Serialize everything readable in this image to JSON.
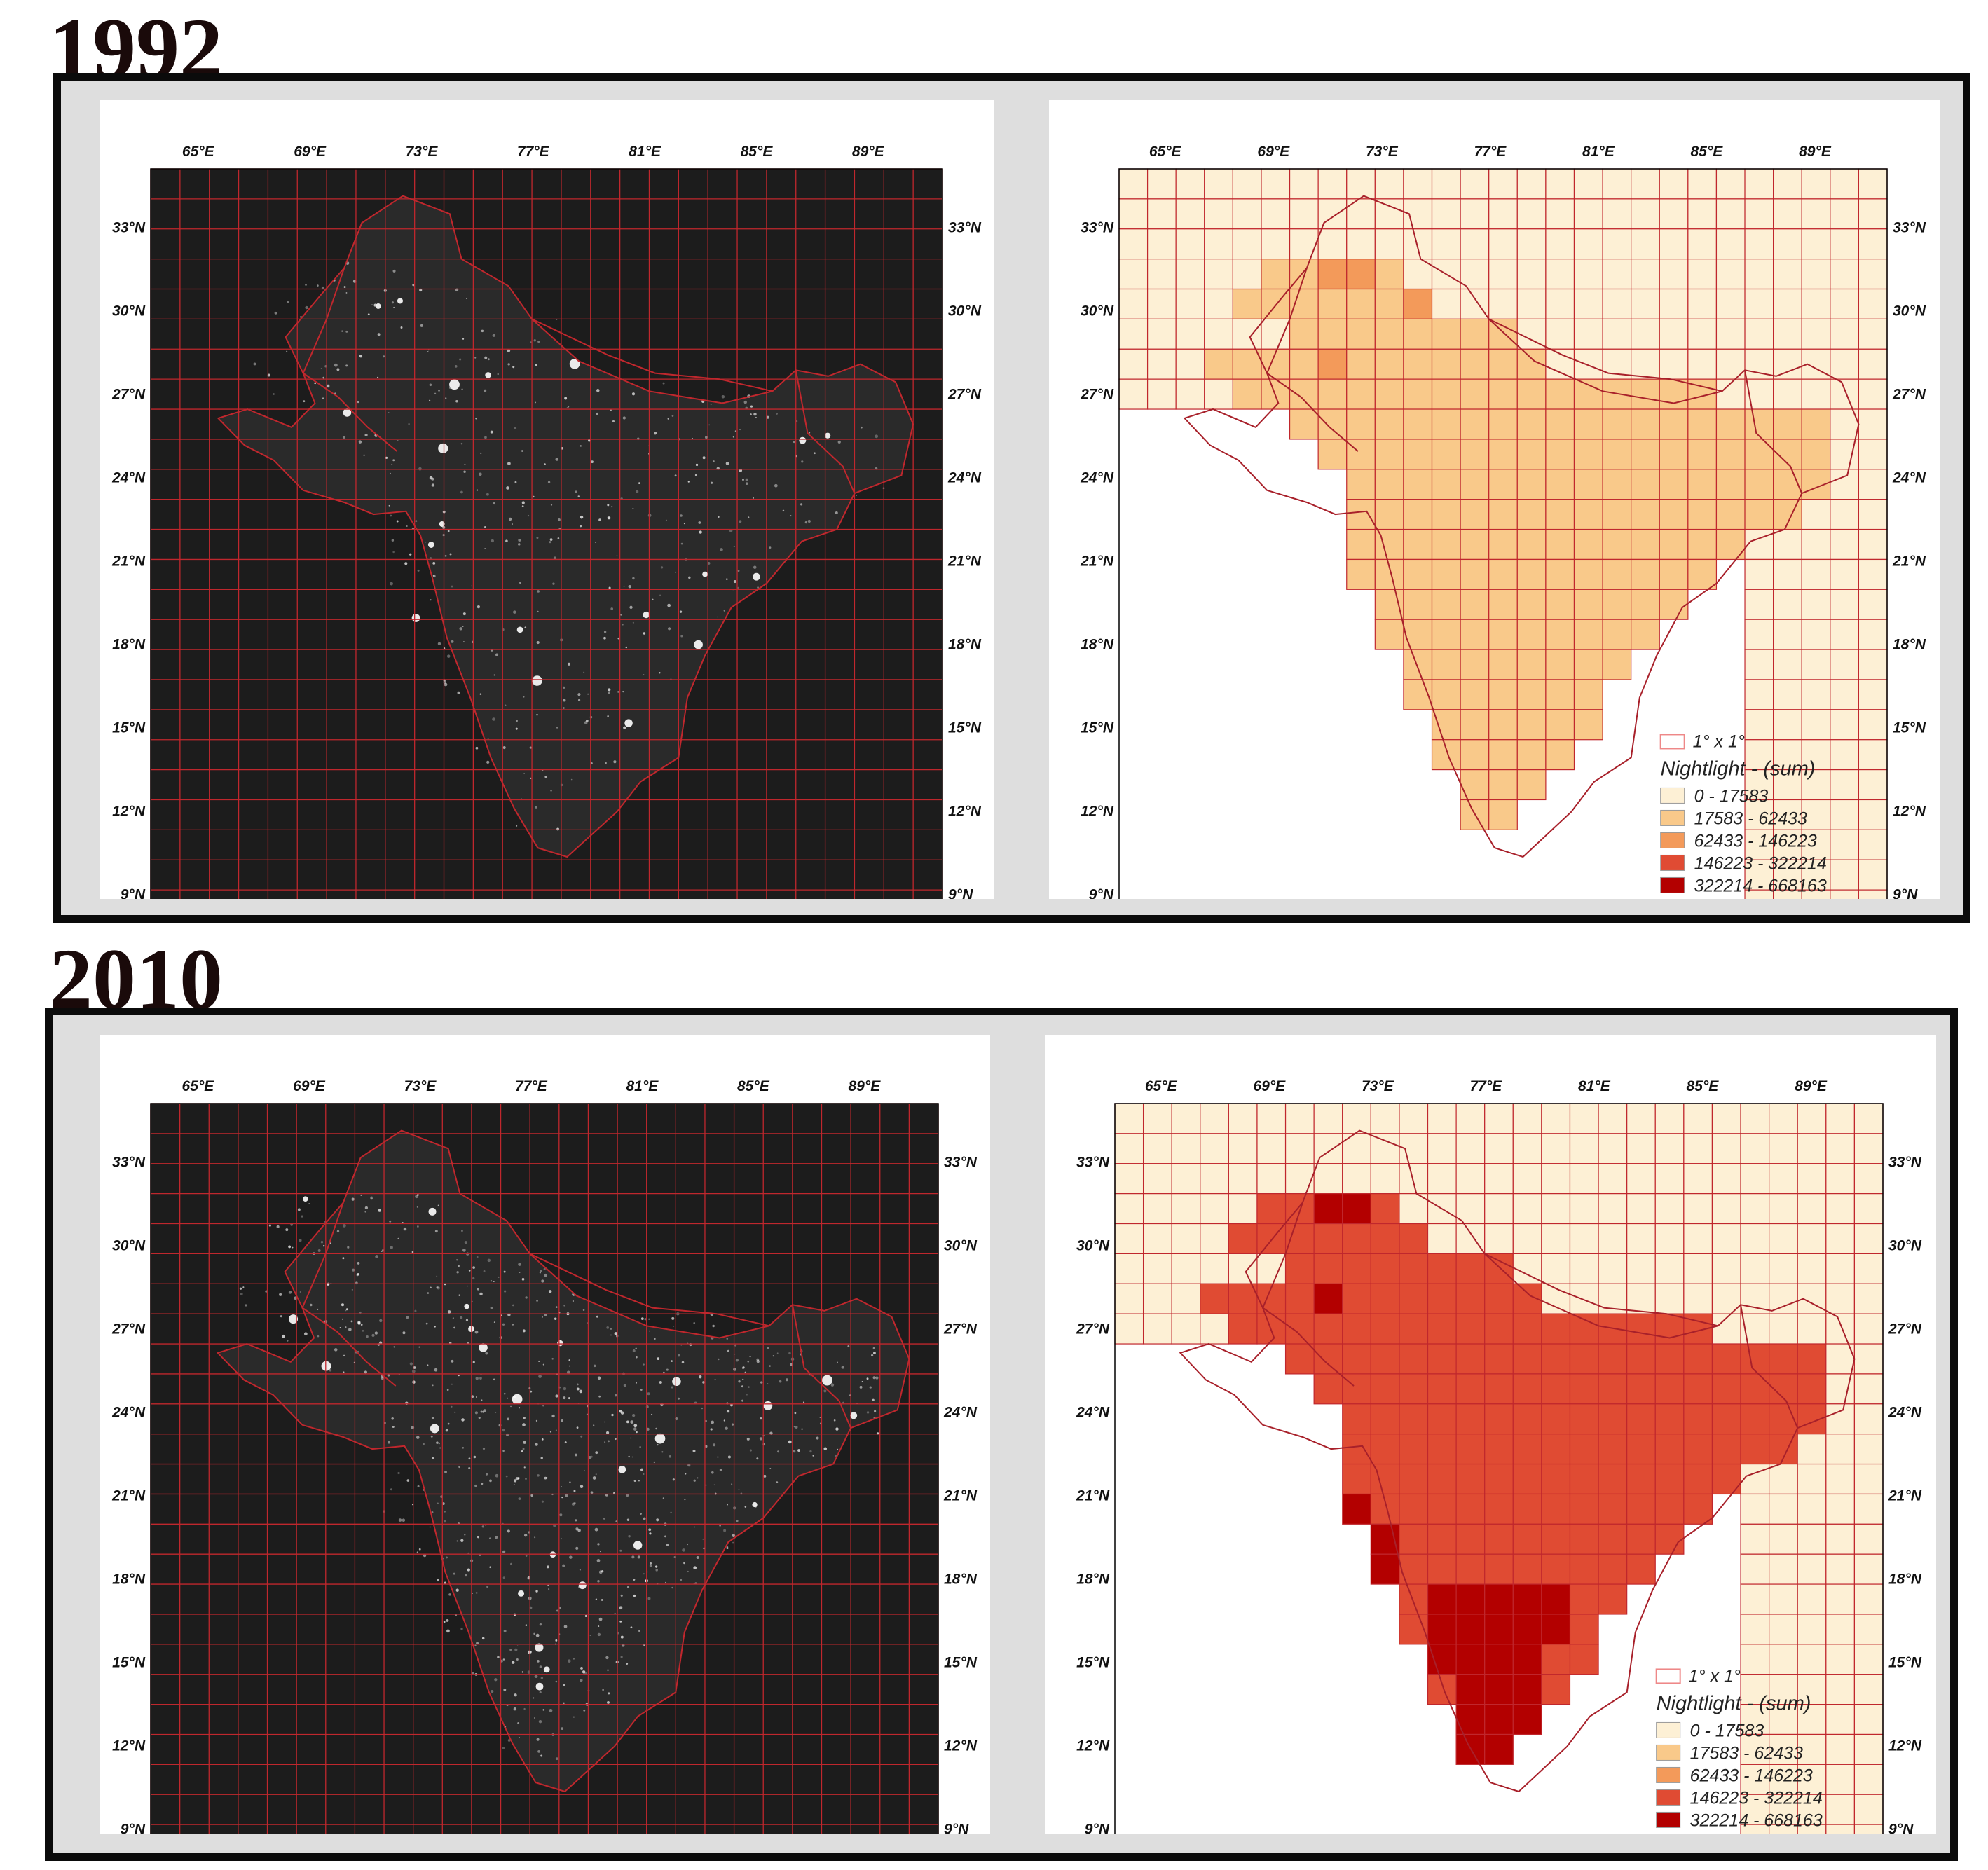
{
  "sections": [
    {
      "year": "1992",
      "values": [
        "000000000000000000000000000",
        "000000000000000000000000000",
        "000000000000000000000000000",
        "000001122100000000000000000",
        "000011111120000000000000000",
        "000000111111110000000000000",
        "000111121111111000000000000",
        "000011111111111111111000000",
        "000000111111111111111111100",
        "000000011111111111111111100",
        "000000001111111111111111100",
        "000000001111111111111111000",
        "000000001111111111111100000",
        "000000001111111111111000000",
        "000000000111111111110000000",
        "000000000111111111100000000",
        "000000000011111111000000000",
        "000000000011111110000000000",
        "000000000001111110000000000",
        "000000000001111100000000000",
        "000000000000111000000000000",
        "000000000000110000000000000",
        "000000000000000000000000000",
        "000000000000000000000000000",
        "000000000000000000000000000"
      ]
    },
    {
      "year": "2010",
      "values": [
        "000000000000000000000000000",
        "000000000000000000000000000",
        "000000000000000000000000000",
        "000003344300000000000000000",
        "000033333330000000000000000",
        "000000333333330000000000000",
        "000333343333333000000000000",
        "000033333333333333333000000",
        "000000333333333333333333300",
        "000000033333333333333333300",
        "000000003333333333333333300",
        "000000003333333333333333000",
        "000000003333333333333300000",
        "000000004333333333333000000",
        "000000000433333333330000000",
        "000000000433333333300000000",
        "000000000034444433000000000",
        "000000000034444430000000000",
        "000000000004444330000000000",
        "000000000003444300000000000",
        "000000000000444000000000000",
        "000000000000440000000000000",
        "000000000000000000000000000",
        "000000000000000000000000000",
        "000000000000000000000000000"
      ]
    }
  ],
  "axes": {
    "lon_labels": [
      "65°E",
      "69°E",
      "73°E",
      "77°E",
      "81°E",
      "85°E",
      "89°E"
    ],
    "lat_labels": [
      "33°N",
      "30°N",
      "27°N",
      "24°N",
      "21°N",
      "18°N",
      "15°N",
      "12°N",
      "9°N"
    ]
  },
  "legend": {
    "grid_label": "1° x 1°",
    "title": "Nightlight - (sum)",
    "classes": [
      {
        "label": "0 - 17583",
        "color": "#fdf0d5"
      },
      {
        "label": "17583 - 62433",
        "color": "#f9c98a"
      },
      {
        "label": "62433 - 146223",
        "color": "#f39a5a"
      },
      {
        "label": "146223 - 322214",
        "color": "#e04b33"
      },
      {
        "label": "322214 - 668163",
        "color": "#b30000"
      }
    ]
  },
  "colors": {
    "night_bg": "#1c1c1c",
    "grid": "#c0272d",
    "frame_bg": "#dedede",
    "frame_border": "#0b0b0b"
  }
}
